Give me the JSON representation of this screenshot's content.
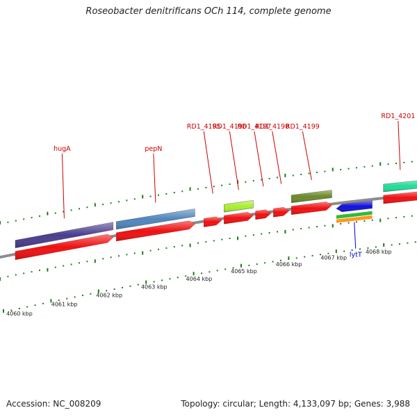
{
  "title": "Roseobacter denitrificans OCh 114, complete genome",
  "footer": {
    "accession": "Accession: NC_008209",
    "summary": "Topology: circular; Length: 4,133,097 bp; Genes: 3,988"
  },
  "colors": {
    "backbone": "#8c8c8c",
    "tick": "#1a7a1a",
    "cds": "#ee1111",
    "label": "#cc0000",
    "label_reverse": "#0000cc"
  },
  "kbp_labels": [
    "4060 kbp",
    "4061 kbp",
    "4062 kbp",
    "4063 kbp",
    "4064 kbp",
    "4065 kbp",
    "4066 kbp",
    "4067 kbp",
    "4068 kbp"
  ],
  "genes": [
    {
      "name": "hugA",
      "start_kbp": 4060.0,
      "end_kbp": 4062.18,
      "strand": "+",
      "color": "#4a3d8f",
      "labeled": true
    },
    {
      "name": "pepN",
      "start_kbp": 4062.25,
      "end_kbp": 4064.0,
      "strand": "+",
      "color": "#4f86bf",
      "labeled": true
    },
    {
      "name": "RD1_4195",
      "start_kbp": 4064.2,
      "end_kbp": 4064.6,
      "strand": "+",
      "color": "#ee1111",
      "labeled": true
    },
    {
      "name": "RD1_4196",
      "start_kbp": 4064.65,
      "end_kbp": 4065.3,
      "strand": "+",
      "color": "#aaee33",
      "labeled": true
    },
    {
      "name": "RD1_4197",
      "start_kbp": 4065.35,
      "end_kbp": 4065.7,
      "strand": "+",
      "color": "#ee1111",
      "labeled": true
    },
    {
      "name": "RD1_4198",
      "start_kbp": 4065.75,
      "end_kbp": 4066.1,
      "strand": "+",
      "color": "#ee1111",
      "labeled": true
    },
    {
      "name": "RD1_4199",
      "start_kbp": 4066.15,
      "end_kbp": 4067.05,
      "strand": "+",
      "color": "#6b8a2a",
      "labeled": true
    },
    {
      "name": "lytT",
      "start_kbp": 4067.15,
      "end_kbp": 4067.95,
      "strand": "-",
      "color": "#1111dd",
      "labeled": true
    },
    {
      "name": "RD1_4201",
      "start_kbp": 4068.2,
      "end_kbp": 4069.3,
      "strand": "+",
      "color": "#22dd99",
      "labeled": true
    }
  ]
}
